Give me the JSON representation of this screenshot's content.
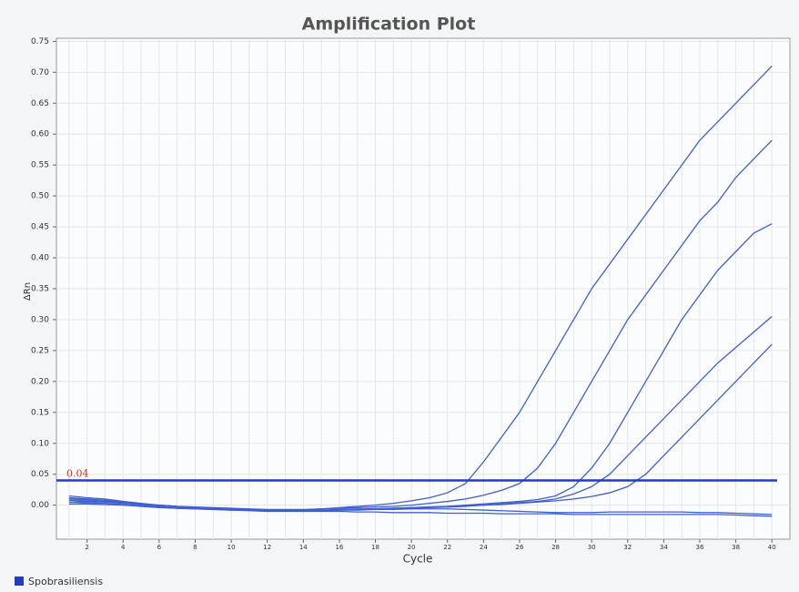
{
  "chart_data": {
    "type": "line",
    "title": "Amplification Plot",
    "xlabel": "Cycle",
    "ylabel": "ΔRn",
    "x": [
      1,
      2,
      3,
      4,
      5,
      6,
      7,
      8,
      9,
      10,
      11,
      12,
      13,
      14,
      15,
      16,
      17,
      18,
      19,
      20,
      21,
      22,
      23,
      24,
      25,
      26,
      27,
      28,
      29,
      30,
      31,
      32,
      33,
      34,
      35,
      36,
      37,
      38,
      39,
      40
    ],
    "series": [
      {
        "color": "#3f5fd0",
        "values": [
          0.015,
          0.012,
          0.01,
          0.006,
          0.003,
          0,
          -0.002,
          -0.004,
          -0.005,
          -0.006,
          -0.007,
          -0.008,
          -0.008,
          -0.008,
          -0.006,
          -0.004,
          -0.002,
          0,
          0.003,
          0.007,
          0.012,
          0.02,
          0.035,
          0.07,
          0.11,
          0.15,
          0.2,
          0.25,
          0.3,
          0.35,
          0.39,
          0.43,
          0.47,
          0.51,
          0.55,
          0.59,
          0.62,
          0.65,
          0.68,
          0.71
        ]
      },
      {
        "color": "#3f5fd0",
        "values": [
          0.01,
          0.009,
          0.008,
          0.005,
          0.002,
          0,
          -0.002,
          -0.003,
          -0.004,
          -0.005,
          -0.006,
          -0.007,
          -0.007,
          -0.007,
          -0.006,
          -0.005,
          -0.004,
          -0.003,
          -0.002,
          0,
          0.003,
          0.006,
          0.01,
          0.016,
          0.024,
          0.035,
          0.06,
          0.1,
          0.15,
          0.2,
          0.25,
          0.3,
          0.34,
          0.38,
          0.42,
          0.46,
          0.49,
          0.53,
          0.56,
          0.59
        ]
      },
      {
        "color": "#3f5fd0",
        "values": [
          0.005,
          0.006,
          0.005,
          0.003,
          0.001,
          -0.001,
          -0.003,
          -0.004,
          -0.005,
          -0.006,
          -0.007,
          -0.008,
          -0.009,
          -0.009,
          -0.009,
          -0.008,
          -0.007,
          -0.006,
          -0.005,
          -0.004,
          -0.003,
          -0.002,
          0,
          0.002,
          0.004,
          0.006,
          0.009,
          0.015,
          0.03,
          0.06,
          0.1,
          0.15,
          0.2,
          0.25,
          0.3,
          0.34,
          0.38,
          0.41,
          0.44,
          0.455
        ]
      },
      {
        "color": "#3f5fd0",
        "values": [
          0.012,
          0.01,
          0.008,
          0.005,
          0.002,
          -0.001,
          -0.003,
          -0.005,
          -0.006,
          -0.007,
          -0.008,
          -0.009,
          -0.009,
          -0.01,
          -0.009,
          -0.008,
          -0.007,
          -0.006,
          -0.006,
          -0.005,
          -0.004,
          -0.003,
          -0.002,
          0,
          0.002,
          0.004,
          0.006,
          0.01,
          0.018,
          0.03,
          0.05,
          0.08,
          0.11,
          0.14,
          0.17,
          0.2,
          0.23,
          0.255,
          0.28,
          0.305
        ]
      },
      {
        "color": "#3f5fd0",
        "values": [
          0.008,
          0.007,
          0.006,
          0.004,
          0.002,
          0,
          -0.002,
          -0.004,
          -0.005,
          -0.006,
          -0.007,
          -0.008,
          -0.008,
          -0.008,
          -0.008,
          -0.007,
          -0.006,
          -0.006,
          -0.005,
          -0.004,
          -0.003,
          -0.002,
          -0.001,
          0,
          0.001,
          0.003,
          0.005,
          0.007,
          0.01,
          0.014,
          0.02,
          0.03,
          0.05,
          0.08,
          0.11,
          0.14,
          0.17,
          0.2,
          0.23,
          0.26
        ]
      },
      {
        "color": "#3f5fd0",
        "values": [
          0.005,
          0.004,
          0.003,
          0.001,
          -0.001,
          -0.003,
          -0.005,
          -0.006,
          -0.007,
          -0.008,
          -0.009,
          -0.01,
          -0.01,
          -0.01,
          -0.01,
          -0.01,
          -0.011,
          -0.011,
          -0.012,
          -0.012,
          -0.012,
          -0.013,
          -0.013,
          -0.013,
          -0.014,
          -0.014,
          -0.014,
          -0.014,
          -0.015,
          -0.015,
          -0.015,
          -0.015,
          -0.015,
          -0.015,
          -0.015,
          -0.015,
          -0.015,
          -0.016,
          -0.017,
          -0.018
        ]
      },
      {
        "color": "#3f5fd0",
        "values": [
          0.002,
          0.002,
          0.001,
          0,
          -0.002,
          -0.004,
          -0.005,
          -0.006,
          -0.007,
          -0.008,
          -0.008,
          -0.009,
          -0.009,
          -0.009,
          -0.009,
          -0.008,
          -0.008,
          -0.007,
          -0.007,
          -0.006,
          -0.006,
          -0.006,
          -0.007,
          -0.008,
          -0.009,
          -0.01,
          -0.011,
          -0.012,
          -0.012,
          -0.012,
          -0.011,
          -0.011,
          -0.011,
          -0.011,
          -0.011,
          -0.012,
          -0.012,
          -0.013,
          -0.014,
          -0.015
        ]
      }
    ],
    "threshold": 0.04,
    "threshold_color": "#1f3fc0",
    "legend": {
      "label": "Spobrasiliensis",
      "color": "#1f3fc0"
    },
    "xlim": [
      0.3,
      41
    ],
    "ylim": [
      -0.055,
      0.755
    ],
    "xticks": [
      2,
      4,
      6,
      8,
      10,
      12,
      14,
      16,
      18,
      20,
      22,
      24,
      26,
      28,
      30,
      32,
      34,
      36,
      38,
      40
    ],
    "yticks": [
      {
        "value": 0,
        "label": "0.00"
      },
      0.05,
      {
        "value": 0.1,
        "label": "0.10"
      },
      0.15,
      {
        "value": 0.2,
        "label": "0.20"
      },
      0.25,
      {
        "value": 0.3,
        "label": "0.30"
      },
      0.35,
      {
        "value": 0.4,
        "label": "0.40"
      },
      0.45,
      {
        "value": 0.5,
        "label": "0.50"
      },
      0.55,
      {
        "value": 0.6,
        "label": "0.60"
      },
      0.65,
      {
        "value": 0.7,
        "label": "0.70"
      },
      0.75
    ],
    "grid": true
  }
}
